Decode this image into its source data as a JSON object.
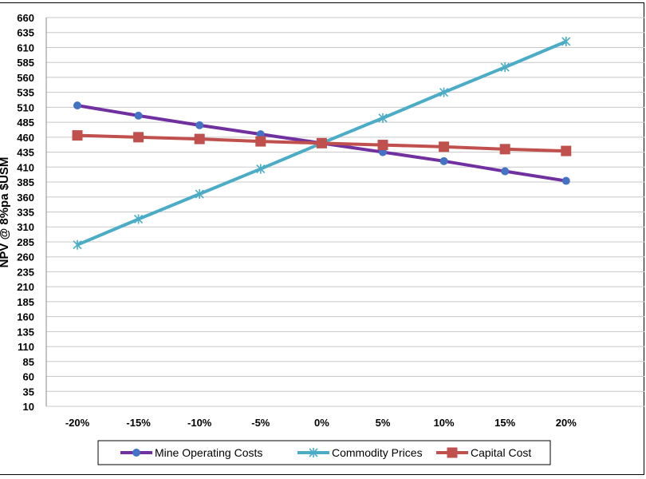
{
  "chart_data": {
    "type": "line",
    "title": "",
    "xlabel": "",
    "ylabel": "NPV @ 8%pa $USM",
    "categories": [
      "-20%",
      "-15%",
      "-10%",
      "-5%",
      "0%",
      "5%",
      "10%",
      "15%",
      "20%"
    ],
    "yticks": [
      "660",
      "635",
      "610",
      "585",
      "560",
      "535",
      "510",
      "485",
      "460",
      "435",
      "410",
      "385",
      "360",
      "335",
      "310",
      "285",
      "260",
      "235",
      "210",
      "185",
      "160",
      "135",
      "110",
      "85",
      "60",
      "35",
      "10"
    ],
    "ylim": [
      10,
      660
    ],
    "grid": true,
    "legend_position": "bottom",
    "series": [
      {
        "name": "Mine Operating Costs",
        "color": "#7030A0",
        "marker": "circle",
        "values": [
          513,
          496,
          480,
          465,
          450,
          435,
          420,
          403,
          387
        ]
      },
      {
        "name": "Commodity Prices",
        "color": "#4BACC6",
        "marker": "x",
        "values": [
          280,
          323,
          365,
          407,
          450,
          492,
          535,
          577,
          620
        ]
      },
      {
        "name": "Capital Cost",
        "color": "#C0504D",
        "marker": "square",
        "values": [
          463,
          460,
          457,
          453,
          450,
          447,
          444,
          440,
          437
        ]
      }
    ]
  }
}
